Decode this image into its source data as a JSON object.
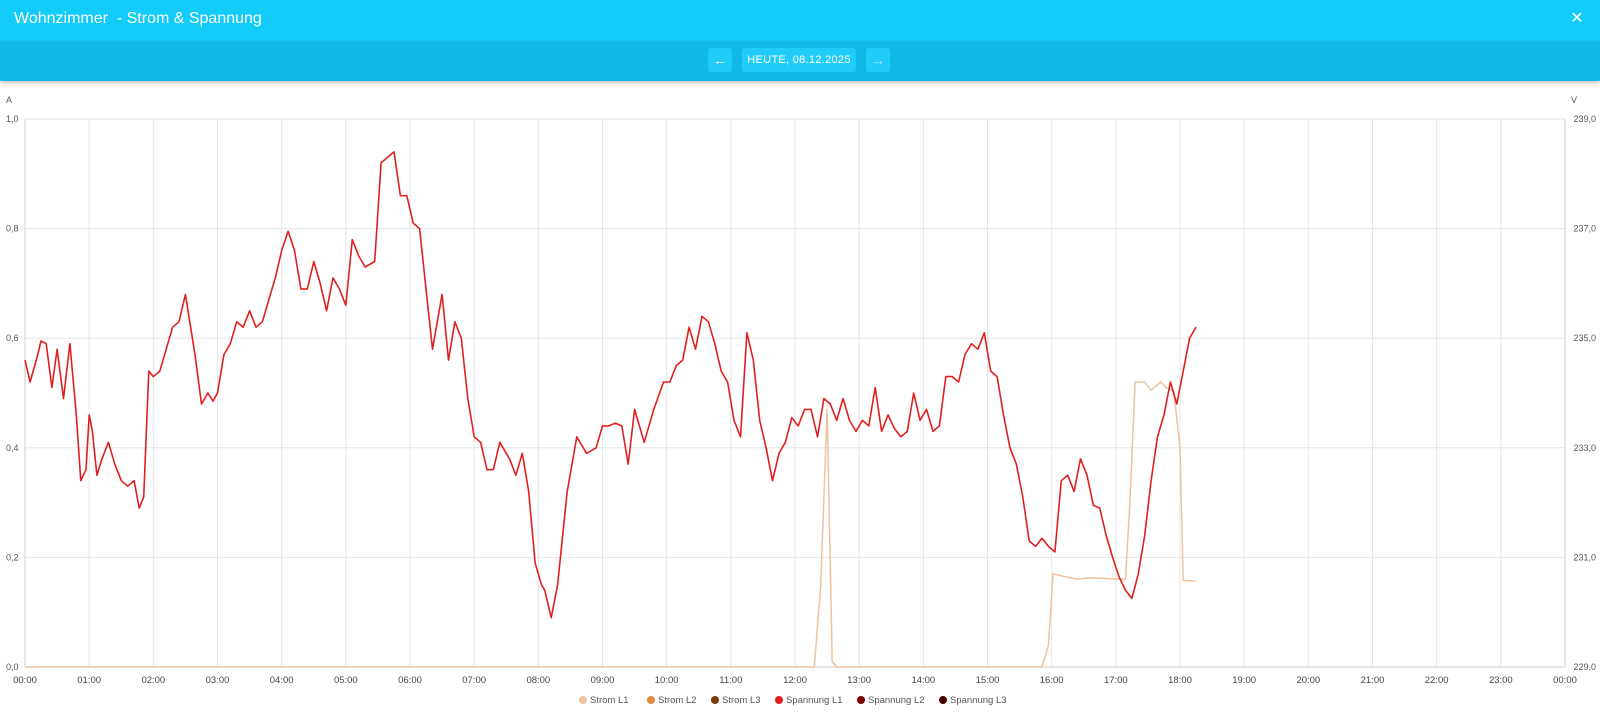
{
  "window": {
    "title": "Wohnzimmer  - Strom & Spannung",
    "close_icon": "close-icon"
  },
  "navigation": {
    "prev_icon": "arrow-left-icon",
    "next_icon": "arrow-right-icon",
    "date_label": "HEUTE, 08.12.2025"
  },
  "chart_data": {
    "type": "line",
    "left_axis": {
      "unit": "A",
      "ylim": [
        0,
        1.0
      ],
      "ticks": [
        "1,0",
        "0,8",
        "0,6",
        "0,4",
        "0,2",
        "0,0"
      ]
    },
    "right_axis": {
      "unit": "V",
      "ylim": [
        229,
        239
      ],
      "ticks": [
        "239,0",
        "237,0",
        "235,0",
        "233,0",
        "231,0",
        "229,0"
      ]
    },
    "x_ticks": [
      "00:00",
      "01:00",
      "02:00",
      "03:00",
      "04:00",
      "05:00",
      "06:00",
      "07:00",
      "08:00",
      "09:00",
      "10:00",
      "11:00",
      "12:00",
      "13:00",
      "14:00",
      "15:00",
      "16:00",
      "17:00",
      "18:00",
      "19:00",
      "20:00",
      "21:00",
      "22:00",
      "23:00",
      "00:00"
    ],
    "grid": true,
    "legend_position": "bottom",
    "legend": [
      {
        "name": "Strom L1",
        "color": "#f0c3a0"
      },
      {
        "name": "Strom L2",
        "color": "#e08a3c"
      },
      {
        "name": "Strom L3",
        "color": "#7a3a10"
      },
      {
        "name": "Spannung L1",
        "color": "#e02020"
      },
      {
        "name": "Spannung L2",
        "color": "#800000"
      },
      {
        "name": "Spannung L3",
        "color": "#400000"
      }
    ],
    "series": [
      {
        "name": "Strom L1",
        "axis": "left",
        "color": "#f0c3a0",
        "points": [
          [
            0,
            0
          ],
          [
            12.3,
            0
          ],
          [
            12.4,
            0.15
          ],
          [
            12.5,
            0.47
          ],
          [
            12.58,
            0.01
          ],
          [
            12.65,
            0
          ],
          [
            15.85,
            0
          ],
          [
            15.95,
            0.04
          ],
          [
            16.02,
            0.17
          ],
          [
            16.2,
            0.165
          ],
          [
            16.4,
            0.16
          ],
          [
            16.6,
            0.163
          ],
          [
            16.9,
            0.161
          ],
          [
            17.15,
            0.16
          ],
          [
            17.22,
            0.3
          ],
          [
            17.3,
            0.52
          ],
          [
            17.45,
            0.52
          ],
          [
            17.55,
            0.505
          ],
          [
            17.7,
            0.52
          ],
          [
            17.8,
            0.508
          ],
          [
            17.9,
            0.505
          ],
          [
            18.0,
            0.4
          ],
          [
            18.05,
            0.158
          ],
          [
            18.25,
            0.157
          ]
        ]
      },
      {
        "name": "Spannung L1",
        "axis": "right",
        "color": "#e02020",
        "points": [
          [
            0,
            234.6
          ],
          [
            0.08,
            234.2
          ],
          [
            0.2,
            234.7
          ],
          [
            0.25,
            234.95
          ],
          [
            0.33,
            234.9
          ],
          [
            0.42,
            234.1
          ],
          [
            0.5,
            234.8
          ],
          [
            0.6,
            233.9
          ],
          [
            0.7,
            234.9
          ],
          [
            0.8,
            233.6
          ],
          [
            0.87,
            232.4
          ],
          [
            0.95,
            232.6
          ],
          [
            1.0,
            233.6
          ],
          [
            1.05,
            233.3
          ],
          [
            1.12,
            232.5
          ],
          [
            1.2,
            232.8
          ],
          [
            1.3,
            233.1
          ],
          [
            1.4,
            232.7
          ],
          [
            1.5,
            232.4
          ],
          [
            1.6,
            232.3
          ],
          [
            1.7,
            232.4
          ],
          [
            1.78,
            231.9
          ],
          [
            1.85,
            232.1
          ],
          [
            1.93,
            234.4
          ],
          [
            2.0,
            234.3
          ],
          [
            2.1,
            234.4
          ],
          [
            2.2,
            234.8
          ],
          [
            2.3,
            235.2
          ],
          [
            2.4,
            235.3
          ],
          [
            2.5,
            235.8
          ],
          [
            2.65,
            234.7
          ],
          [
            2.75,
            233.8
          ],
          [
            2.85,
            234
          ],
          [
            2.93,
            233.85
          ],
          [
            3.0,
            234
          ],
          [
            3.1,
            234.7
          ],
          [
            3.2,
            234.9
          ],
          [
            3.3,
            235.3
          ],
          [
            3.4,
            235.2
          ],
          [
            3.5,
            235.5
          ],
          [
            3.6,
            235.2
          ],
          [
            3.7,
            235.3
          ],
          [
            3.8,
            235.7
          ],
          [
            3.9,
            236.1
          ],
          [
            4.0,
            236.6
          ],
          [
            4.1,
            236.95
          ],
          [
            4.2,
            236.6
          ],
          [
            4.3,
            235.9
          ],
          [
            4.4,
            235.9
          ],
          [
            4.5,
            236.4
          ],
          [
            4.6,
            236.0
          ],
          [
            4.7,
            235.5
          ],
          [
            4.8,
            236.1
          ],
          [
            4.9,
            235.9
          ],
          [
            5.0,
            235.6
          ],
          [
            5.1,
            236.8
          ],
          [
            5.2,
            236.5
          ],
          [
            5.3,
            236.3
          ],
          [
            5.45,
            236.4
          ],
          [
            5.55,
            238.2
          ],
          [
            5.65,
            238.3
          ],
          [
            5.75,
            238.4
          ],
          [
            5.85,
            237.6
          ],
          [
            5.95,
            237.6
          ],
          [
            6.05,
            237.1
          ],
          [
            6.15,
            237.0
          ],
          [
            6.25,
            235.9
          ],
          [
            6.35,
            234.8
          ],
          [
            6.5,
            235.8
          ],
          [
            6.6,
            234.6
          ],
          [
            6.7,
            235.3
          ],
          [
            6.8,
            235.0
          ],
          [
            6.9,
            233.9
          ],
          [
            7.0,
            233.2
          ],
          [
            7.1,
            233.1
          ],
          [
            7.2,
            232.6
          ],
          [
            7.3,
            232.6
          ],
          [
            7.4,
            233.1
          ],
          [
            7.55,
            232.8
          ],
          [
            7.65,
            232.5
          ],
          [
            7.75,
            232.9
          ],
          [
            7.85,
            232.2
          ],
          [
            7.95,
            230.9
          ],
          [
            8.05,
            230.5
          ],
          [
            8.1,
            230.4
          ],
          [
            8.2,
            229.9
          ],
          [
            8.3,
            230.5
          ],
          [
            8.45,
            232.2
          ],
          [
            8.6,
            233.2
          ],
          [
            8.75,
            232.9
          ],
          [
            8.9,
            233.0
          ],
          [
            9.0,
            233.4
          ],
          [
            9.1,
            233.4
          ],
          [
            9.2,
            233.45
          ],
          [
            9.3,
            233.4
          ],
          [
            9.4,
            232.7
          ],
          [
            9.5,
            233.7
          ],
          [
            9.65,
            233.1
          ],
          [
            9.8,
            233.7
          ],
          [
            9.95,
            234.2
          ],
          [
            10.05,
            234.2
          ],
          [
            10.15,
            234.5
          ],
          [
            10.25,
            234.6
          ],
          [
            10.35,
            235.2
          ],
          [
            10.45,
            234.8
          ],
          [
            10.55,
            235.4
          ],
          [
            10.65,
            235.3
          ],
          [
            10.75,
            234.9
          ],
          [
            10.85,
            234.4
          ],
          [
            10.95,
            234.2
          ],
          [
            11.05,
            233.5
          ],
          [
            11.15,
            233.2
          ],
          [
            11.25,
            235.1
          ],
          [
            11.35,
            234.6
          ],
          [
            11.45,
            233.5
          ],
          [
            11.55,
            233.0
          ],
          [
            11.65,
            232.4
          ],
          [
            11.75,
            232.9
          ],
          [
            11.85,
            233.1
          ],
          [
            11.95,
            233.55
          ],
          [
            12.05,
            233.4
          ],
          [
            12.15,
            233.7
          ],
          [
            12.25,
            233.7
          ],
          [
            12.35,
            233.2
          ],
          [
            12.45,
            233.9
          ],
          [
            12.55,
            233.8
          ],
          [
            12.65,
            233.5
          ],
          [
            12.75,
            233.9
          ],
          [
            12.85,
            233.5
          ],
          [
            12.95,
            233.3
          ],
          [
            13.05,
            233.5
          ],
          [
            13.15,
            233.4
          ],
          [
            13.25,
            234.1
          ],
          [
            13.35,
            233.3
          ],
          [
            13.45,
            233.6
          ],
          [
            13.55,
            233.35
          ],
          [
            13.65,
            233.2
          ],
          [
            13.75,
            233.3
          ],
          [
            13.85,
            234.0
          ],
          [
            13.95,
            233.5
          ],
          [
            14.05,
            233.7
          ],
          [
            14.15,
            233.3
          ],
          [
            14.25,
            233.4
          ],
          [
            14.35,
            234.3
          ],
          [
            14.45,
            234.3
          ],
          [
            14.55,
            234.2
          ],
          [
            14.65,
            234.7
          ],
          [
            14.75,
            234.9
          ],
          [
            14.85,
            234.8
          ],
          [
            14.95,
            235.1
          ],
          [
            15.05,
            234.4
          ],
          [
            15.15,
            234.3
          ],
          [
            15.25,
            233.6
          ],
          [
            15.35,
            233.0
          ],
          [
            15.45,
            232.7
          ],
          [
            15.55,
            232.1
          ],
          [
            15.65,
            231.3
          ],
          [
            15.75,
            231.2
          ],
          [
            15.85,
            231.35
          ],
          [
            15.95,
            231.2
          ],
          [
            16.05,
            231.1
          ],
          [
            16.15,
            232.4
          ],
          [
            16.25,
            232.5
          ],
          [
            16.35,
            232.2
          ],
          [
            16.45,
            232.8
          ],
          [
            16.55,
            232.5
          ],
          [
            16.65,
            231.95
          ],
          [
            16.75,
            231.9
          ],
          [
            16.85,
            231.4
          ],
          [
            16.95,
            231.0
          ],
          [
            17.05,
            230.65
          ],
          [
            17.15,
            230.4
          ],
          [
            17.25,
            230.25
          ],
          [
            17.35,
            230.7
          ],
          [
            17.45,
            231.4
          ],
          [
            17.55,
            232.4
          ],
          [
            17.65,
            233.2
          ],
          [
            17.75,
            233.6
          ],
          [
            17.85,
            234.2
          ],
          [
            17.95,
            233.8
          ],
          [
            18.05,
            234.4
          ],
          [
            18.15,
            235.0
          ],
          [
            18.25,
            235.2
          ]
        ]
      }
    ]
  }
}
